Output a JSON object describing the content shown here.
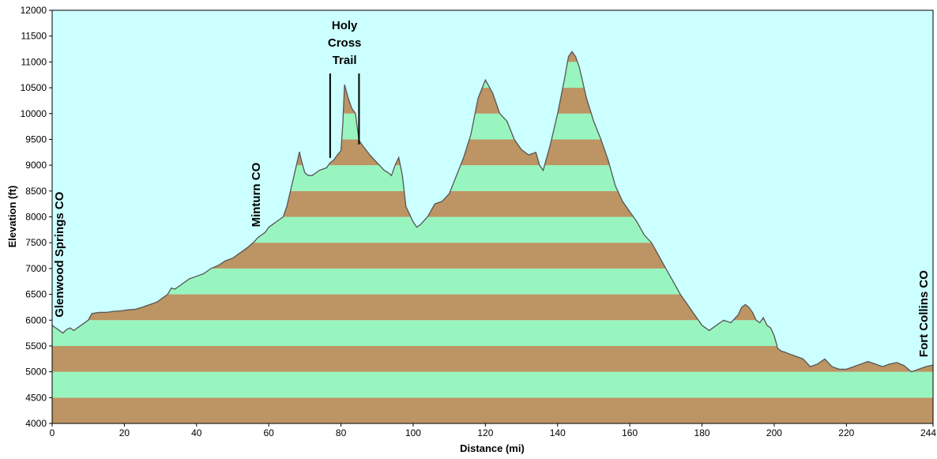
{
  "chart_data": {
    "type": "area",
    "xlabel": "Distance (mi)",
    "ylabel": "Elevation (ft)",
    "xlim": [
      0,
      244
    ],
    "ylim": [
      4000,
      12000
    ],
    "xticks": [
      0,
      20,
      40,
      60,
      80,
      100,
      120,
      140,
      160,
      180,
      200,
      220,
      244
    ],
    "yticks": [
      4000,
      4500,
      5000,
      5500,
      6000,
      6500,
      7000,
      7500,
      8000,
      8500,
      9000,
      9500,
      10000,
      10500,
      11000,
      11500,
      12000
    ],
    "band_interval": 500,
    "colors": {
      "background": "#ccffff",
      "band_light": "#99f5bf",
      "band_dark": "#bd9463",
      "outline": "#555555"
    },
    "series": [
      {
        "x": [
          0,
          1,
          2,
          3,
          4,
          5,
          6,
          8,
          10,
          11,
          13,
          15,
          17,
          19,
          21,
          23,
          25,
          27,
          29,
          30,
          31,
          32,
          33,
          34,
          36,
          38,
          40,
          42,
          44,
          46,
          48,
          50,
          52,
          54,
          56,
          57,
          58,
          59,
          60,
          61,
          62,
          64,
          65,
          66,
          67,
          68,
          68.5,
          69,
          70,
          71,
          72,
          73,
          74,
          76,
          77,
          78,
          79,
          80,
          80.5,
          81,
          82,
          83,
          84,
          85,
          86,
          88,
          90,
          92,
          93,
          94,
          95,
          96,
          97,
          98,
          100,
          101,
          102,
          104,
          106,
          108,
          110,
          112,
          114,
          116,
          118,
          120,
          122,
          124,
          126,
          128,
          130,
          132,
          134,
          135,
          136,
          138,
          140,
          142,
          143,
          144,
          145,
          146,
          148,
          150,
          152,
          154,
          156,
          158,
          160,
          162,
          164,
          166,
          168,
          170,
          172,
          174,
          176,
          178,
          180,
          182,
          184,
          185,
          186,
          188,
          190,
          191,
          192,
          193,
          194,
          195,
          196,
          197,
          198,
          199,
          200,
          201,
          202,
          203,
          204,
          206,
          208,
          210,
          212,
          214,
          216,
          218,
          220,
          222,
          224,
          226,
          228,
          230,
          232,
          234,
          236,
          238,
          240,
          242,
          244
        ],
        "y": [
          5900,
          5850,
          5800,
          5750,
          5820,
          5850,
          5800,
          5900,
          6000,
          6130,
          6150,
          6150,
          6170,
          6180,
          6200,
          6210,
          6250,
          6300,
          6350,
          6400,
          6450,
          6500,
          6620,
          6600,
          6700,
          6800,
          6850,
          6900,
          7000,
          7060,
          7150,
          7200,
          7300,
          7400,
          7520,
          7600,
          7650,
          7700,
          7800,
          7850,
          7900,
          8000,
          8200,
          8500,
          8800,
          9100,
          9260,
          9100,
          8850,
          8800,
          8800,
          8850,
          8900,
          8950,
          9050,
          9100,
          9200,
          9280,
          9800,
          10560,
          10300,
          10100,
          10000,
          9480,
          9380,
          9200,
          9050,
          8900,
          8860,
          8800,
          9000,
          9150,
          8800,
          8200,
          7900,
          7800,
          7850,
          8000,
          8250,
          8300,
          8450,
          8800,
          9150,
          9600,
          10300,
          10650,
          10400,
          10000,
          9850,
          9500,
          9300,
          9200,
          9250,
          9000,
          8900,
          9400,
          10000,
          10700,
          11100,
          11200,
          11100,
          10900,
          10300,
          9850,
          9500,
          9100,
          8600,
          8300,
          8100,
          7900,
          7650,
          7500,
          7250,
          7000,
          6750,
          6500,
          6300,
          6100,
          5900,
          5800,
          5900,
          5950,
          6000,
          5950,
          6100,
          6250,
          6300,
          6250,
          6150,
          6000,
          5950,
          6050,
          5900,
          5850,
          5700,
          5450,
          5400,
          5380,
          5350,
          5300,
          5250,
          5100,
          5150,
          5250,
          5100,
          5050,
          5050,
          5100,
          5150,
          5200,
          5150,
          5100,
          5150,
          5180,
          5120,
          5000,
          5050,
          5100,
          5130
        ]
      }
    ],
    "annotations": [
      {
        "label": "Glenwood Springs CO",
        "x": 0
      },
      {
        "label": "Minturn CO",
        "x": 58
      },
      {
        "label": "Fort Collins CO",
        "x": 244
      },
      {
        "label_lines": [
          "Holy",
          "Cross",
          "Trail"
        ],
        "x_start": 77,
        "x_end": 85
      }
    ]
  }
}
